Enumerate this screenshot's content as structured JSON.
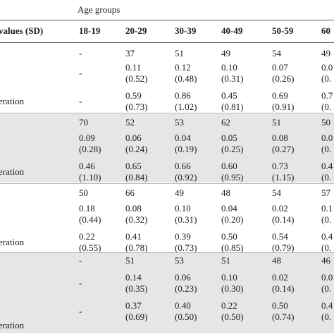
{
  "table": {
    "age_groups_label": "Age groups",
    "row_header": "values (SD)",
    "columns": [
      "18-19",
      "20-29",
      "30-39",
      "40-49",
      "50-59",
      "60"
    ],
    "sections": [
      {
        "shaded": false,
        "rows": [
          {
            "label": "",
            "cells": [
              [
                "-"
              ],
              [
                "37"
              ],
              [
                "51"
              ],
              [
                "49"
              ],
              [
                "54"
              ],
              [
                "49"
              ]
            ]
          },
          {
            "label": "",
            "cells": [
              [
                "-"
              ],
              [
                "0.11",
                "(0.52)"
              ],
              [
                "0.12",
                "(0.48)"
              ],
              [
                "0.10",
                "(0.31)"
              ],
              [
                "0.07",
                "(0.26)"
              ],
              [
                "0.0",
                "(0."
              ]
            ]
          },
          {
            "label": "eration",
            "cells": [
              [
                "-"
              ],
              [
                "0.59",
                "(0.73)"
              ],
              [
                "0.86",
                "(1.02)"
              ],
              [
                "0.45",
                "(0.81)"
              ],
              [
                "0.69",
                "(0.91)"
              ],
              [
                "0.7",
                "(0."
              ]
            ]
          }
        ]
      },
      {
        "shaded": true,
        "rows": [
          {
            "label": "",
            "cells": [
              [
                "70"
              ],
              [
                "52"
              ],
              [
                "53"
              ],
              [
                "62"
              ],
              [
                "51"
              ],
              [
                "50"
              ]
            ]
          },
          {
            "label": "",
            "cells": [
              [
                "0.09",
                "(0.28)"
              ],
              [
                "0.06",
                "(0.24)"
              ],
              [
                "0.04",
                "(0.19)"
              ],
              [
                "0.05",
                "(0.25)"
              ],
              [
                "0.08",
                "(0.27)"
              ],
              [
                "0.0",
                "(0."
              ]
            ]
          },
          {
            "label": "eration",
            "cells": [
              [
                "0.46",
                "(1.10)"
              ],
              [
                "0.65",
                "(0.84)"
              ],
              [
                "0.66",
                "(0.92)"
              ],
              [
                "0.60",
                "(0.95)"
              ],
              [
                "0.73",
                "(1.15)"
              ],
              [
                "0.4",
                "(0."
              ]
            ]
          }
        ]
      },
      {
        "shaded": false,
        "rows": [
          {
            "label": "",
            "cells": [
              [
                "50"
              ],
              [
                "66"
              ],
              [
                "49"
              ],
              [
                "48"
              ],
              [
                "54"
              ],
              [
                "57"
              ]
            ]
          },
          {
            "label": "",
            "cells": [
              [
                "0.18",
                "(0.44)"
              ],
              [
                "0.08",
                "(0.32)"
              ],
              [
                "0.10",
                "(0.31)"
              ],
              [
                "0.04",
                "(0.20)"
              ],
              [
                "0.02",
                "(0.14)"
              ],
              [
                "0.1",
                "(0."
              ]
            ]
          },
          {
            "label": "eration",
            "cells": [
              [
                "0.22",
                "(0.55)"
              ],
              [
                "0.41",
                "(0.78)"
              ],
              [
                "0.39",
                "(0.73)"
              ],
              [
                "0.50",
                "(0.85)"
              ],
              [
                "0.54",
                "(0.79)"
              ],
              [
                "0.4",
                "(0."
              ]
            ]
          }
        ]
      },
      {
        "shaded": true,
        "rows": [
          {
            "label": "",
            "cells": [
              [
                "-"
              ],
              [
                "51"
              ],
              [
                "53"
              ],
              [
                "51"
              ],
              [
                "48"
              ],
              [
                "46"
              ]
            ]
          },
          {
            "label": "",
            "cells": [
              [
                "-"
              ],
              [
                "0.14",
                "(0.35)"
              ],
              [
                "0.06",
                "(0.23)"
              ],
              [
                "0.10",
                "(0.30)"
              ],
              [
                "0.02",
                "(0.14)"
              ],
              [
                "0.0",
                "(0."
              ]
            ]
          },
          {
            "label": "eration",
            "cells": [
              [
                "-"
              ],
              [
                "0.37",
                "(0.69)"
              ],
              [
                "0.40",
                "(0.50)"
              ],
              [
                "0.22",
                "(0.50)"
              ],
              [
                "0.50",
                "(0.74)"
              ],
              [
                "0.4",
                "(0."
              ]
            ]
          }
        ]
      }
    ]
  }
}
